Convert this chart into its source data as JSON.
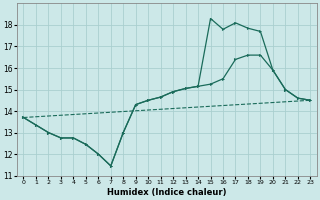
{
  "xlabel": "Humidex (Indice chaleur)",
  "xlim": [
    -0.5,
    23.5
  ],
  "ylim": [
    11,
    19
  ],
  "yticks": [
    11,
    12,
    13,
    14,
    15,
    16,
    17,
    18
  ],
  "xticks": [
    0,
    1,
    2,
    3,
    4,
    5,
    6,
    7,
    8,
    9,
    10,
    11,
    12,
    13,
    14,
    15,
    16,
    17,
    18,
    19,
    20,
    21,
    22,
    23
  ],
  "bg_color": "#cce8e8",
  "grid_color": "#aacfcf",
  "line_color": "#1a6b5a",
  "line1_x": [
    0,
    23
  ],
  "line1_y": [
    13.7,
    14.5
  ],
  "shared_x": [
    0,
    1,
    2,
    3,
    4,
    5,
    6,
    7,
    8
  ],
  "shared_y": [
    13.7,
    13.35,
    13.0,
    12.75,
    12.75,
    12.45,
    12.0,
    11.45,
    13.0
  ],
  "line2_x": [
    8,
    9,
    10,
    11,
    12,
    13,
    14,
    15,
    16,
    17,
    18,
    19,
    20,
    21,
    22,
    23
  ],
  "line2_y": [
    13.0,
    14.3,
    14.5,
    14.65,
    14.9,
    15.05,
    15.15,
    15.25,
    15.5,
    16.4,
    16.6,
    16.6,
    15.9,
    15.0,
    14.6,
    14.5
  ],
  "line3_x": [
    8,
    9,
    10,
    11,
    12,
    13,
    14,
    15,
    16,
    17,
    18,
    19,
    20,
    21,
    22,
    23
  ],
  "line3_y": [
    13.0,
    14.3,
    14.5,
    14.65,
    14.9,
    15.05,
    15.15,
    18.3,
    17.8,
    18.1,
    17.85,
    17.7,
    15.9,
    15.0,
    14.6,
    14.5
  ]
}
